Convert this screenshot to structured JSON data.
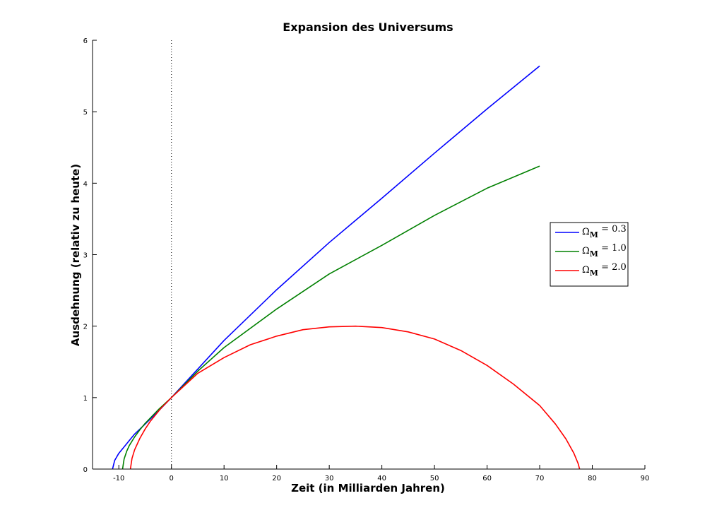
{
  "chart_data": {
    "type": "line",
    "title": "Expansion des Universums",
    "xlabel": "Zeit (in Milliarden Jahren)",
    "ylabel": "Ausdehnung (relativ zu heute)",
    "xlim": [
      -15,
      90
    ],
    "ylim": [
      0,
      6
    ],
    "xticks": [
      -10,
      0,
      10,
      20,
      30,
      40,
      50,
      60,
      70,
      80,
      90
    ],
    "yticks": [
      0,
      1,
      2,
      3,
      4,
      5,
      6
    ],
    "grid": false,
    "legend_position": "right",
    "reference_line": {
      "x": 0,
      "style": "dotted"
    },
    "series": [
      {
        "name": "Ω_M = 0.3",
        "legend_symbol": "Ω",
        "legend_subscript": "M",
        "legend_value": " = 0.3",
        "color": "#0000ff",
        "x": [
          -11.2,
          -10.8,
          -10.0,
          -9.0,
          -8.0,
          -7.0,
          -5.0,
          -2.5,
          0,
          5,
          10,
          20,
          30,
          40,
          50,
          60,
          70
        ],
        "y": [
          0.0,
          0.12,
          0.22,
          0.31,
          0.4,
          0.49,
          0.63,
          0.81,
          1.0,
          1.4,
          1.8,
          2.51,
          3.17,
          3.79,
          4.42,
          5.04,
          5.64
        ]
      },
      {
        "name": "Ω_M = 1.0",
        "legend_symbol": "Ω",
        "legend_subscript": "M",
        "legend_value": " = 1.0",
        "color": "#008000",
        "x": [
          -9.3,
          -9.0,
          -8.5,
          -8.0,
          -7.0,
          -6.0,
          -5.0,
          -2.5,
          0,
          5,
          10,
          20,
          30,
          40,
          50,
          60,
          70
        ],
        "y": [
          0.0,
          0.14,
          0.25,
          0.33,
          0.45,
          0.55,
          0.64,
          0.83,
          1.0,
          1.37,
          1.7,
          2.24,
          2.73,
          3.13,
          3.55,
          3.93,
          4.24
        ]
      },
      {
        "name": "Ω_M = 2.0",
        "legend_symbol": "Ω",
        "legend_subscript": "M",
        "legend_value": " = 2.0",
        "color": "#ff0000",
        "x": [
          -7.8,
          -7.5,
          -7.0,
          -6.0,
          -5.0,
          -4.0,
          -2.0,
          0,
          5,
          10,
          15,
          20,
          25,
          30,
          35,
          40,
          45,
          50,
          55,
          60,
          65,
          70,
          73,
          75,
          76.5,
          77.3,
          77.6
        ],
        "y": [
          0.0,
          0.15,
          0.27,
          0.43,
          0.56,
          0.67,
          0.85,
          1.0,
          1.34,
          1.56,
          1.74,
          1.86,
          1.95,
          1.99,
          2.0,
          1.98,
          1.92,
          1.82,
          1.66,
          1.45,
          1.19,
          0.89,
          0.63,
          0.42,
          0.22,
          0.08,
          0.0
        ]
      }
    ]
  }
}
